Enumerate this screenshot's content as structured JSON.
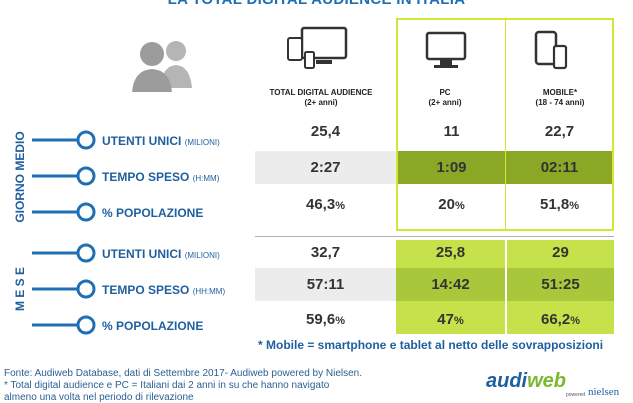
{
  "title": "LA TOTAL DIGITAL AUDIENCE IN ITALIA",
  "columns": {
    "total": {
      "label": "TOTAL DIGITAL AUDIENCE",
      "sub": "(2+ anni)"
    },
    "pc": {
      "label": "PC",
      "sub": "(2+ anni)"
    },
    "mobile": {
      "label": "MOBILE*",
      "sub": "(18 - 74 anni)"
    }
  },
  "sections": [
    {
      "label": "GIORNO MEDIO",
      "rows": [
        {
          "label": "UTENTI UNICI",
          "unit": "(MILIONI)",
          "total": "25,4",
          "pc": "11",
          "mobile": "22,7"
        },
        {
          "label": "TEMPO SPESO",
          "unit": "(H:MM)",
          "total": "2:27",
          "pc": "1:09",
          "mobile": "02:11"
        },
        {
          "label": "% POPOLAZIONE",
          "unit": "",
          "total": "46,3",
          "pc": "20",
          "mobile": "51,8"
        }
      ]
    },
    {
      "label": "M E S E",
      "rows": [
        {
          "label": "UTENTI UNICI",
          "unit": "(MILIONI)",
          "total": "32,7",
          "pc": "25,8",
          "mobile": "29"
        },
        {
          "label": "TEMPO SPESO",
          "unit": "(HH:MM)",
          "total": "57:11",
          "pc": "14:42",
          "mobile": "51:25"
        },
        {
          "label": "% POPOLAZIONE",
          "unit": "",
          "total": "59,6",
          "pc": "47",
          "mobile": "66,2"
        }
      ]
    }
  ],
  "percent_sign": "%",
  "note": "* Mobile = smartphone e tablet al netto delle sovrapposizioni",
  "source_line1": "Fonte: Audiweb Database, dati di Settembre 2017- Audiweb powered by Nielsen.",
  "source_line2": "* Total digital audience e PC = Italiani dai 2 anni in su che hanno navigato",
  "source_line3": "almeno una volta nel periodo di rilevazione",
  "logo": {
    "audi": "audi",
    "web": "web",
    "powered": "powered",
    "nielsen": "nielsen"
  },
  "colors": {
    "blue": "#1f6fb5",
    "accent": "#d3e637",
    "mobile_dark": "#8aa726",
    "mobile_light": "#c5e24a"
  },
  "icons": [
    "people-icon",
    "multi-device-icon",
    "pc-monitor-icon",
    "mobile-devices-icon",
    "connector-pill-icon"
  ]
}
